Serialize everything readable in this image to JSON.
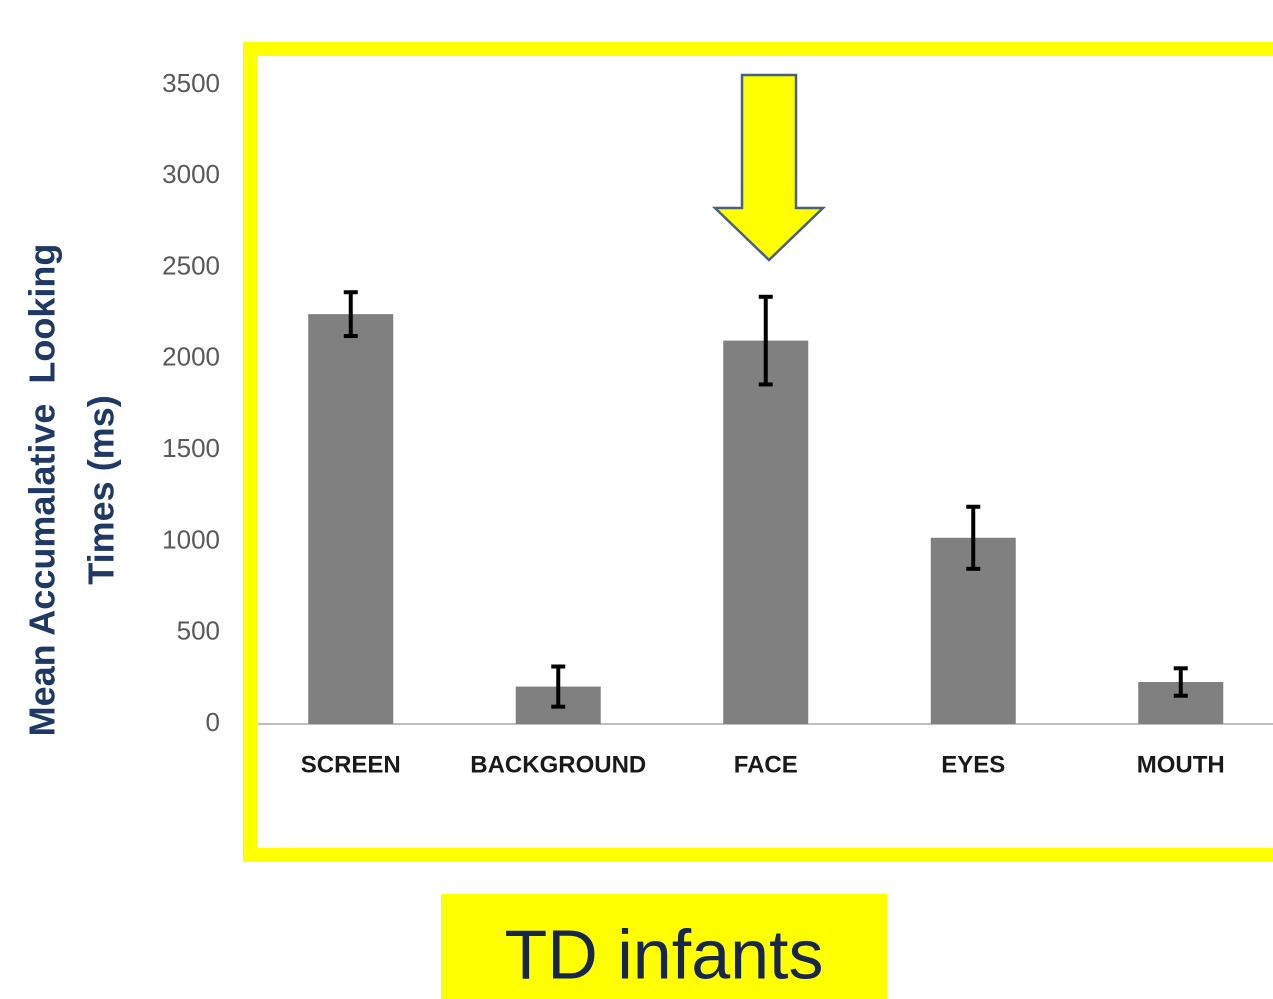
{
  "chart_data": {
    "type": "bar",
    "ylabel": [
      "Mean Accumalative  Looking",
      "Times (ms)"
    ],
    "categories": [
      "SCREEN",
      "BACKGROUND",
      "FACE",
      "EYES",
      "MOUTH"
    ],
    "values": [
      2245,
      205,
      2100,
      1020,
      230
    ],
    "errors": [
      120,
      110,
      240,
      170,
      75
    ],
    "color": "#808080",
    "ylim": [
      0,
      3500
    ],
    "yticks": [
      0,
      500,
      1000,
      1500,
      2000,
      2500,
      3000,
      3500
    ],
    "annotation": "TD infants"
  }
}
